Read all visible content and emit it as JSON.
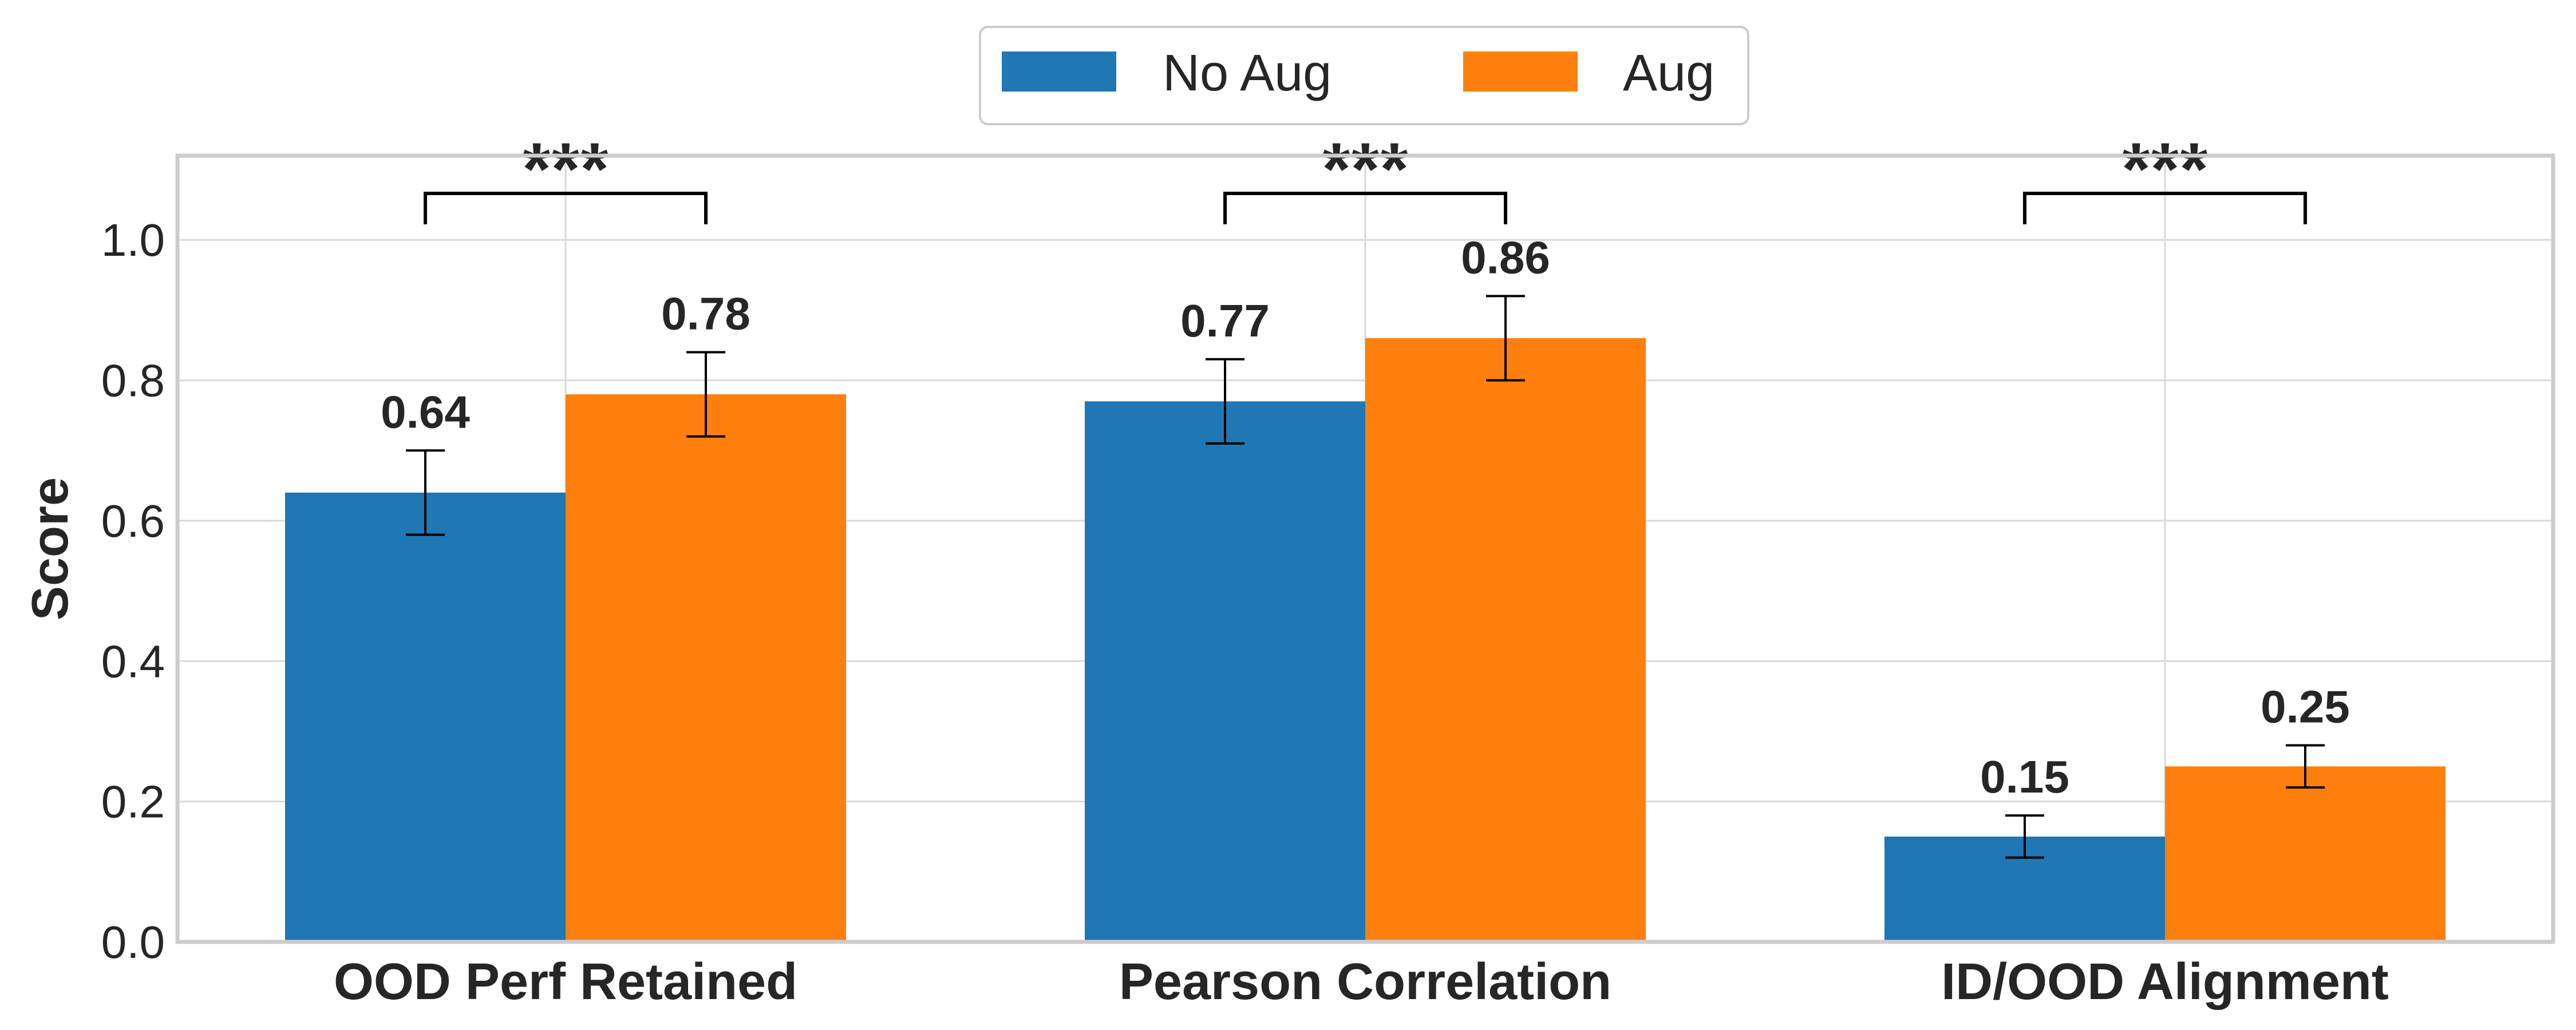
{
  "chart_data": {
    "type": "bar",
    "categories": [
      "OOD Perf Retained",
      "Pearson Correlation",
      "ID/OOD Alignment"
    ],
    "series": [
      {
        "name": "No Aug",
        "color": "#1f77b4",
        "values": [
          0.64,
          0.77,
          0.15
        ],
        "value_labels": [
          "0.64",
          "0.77",
          "0.15"
        ],
        "error_low": [
          0.58,
          0.71,
          0.12
        ],
        "error_high": [
          0.7,
          0.83,
          0.18
        ]
      },
      {
        "name": "Aug",
        "color": "#ff7f0e",
        "values": [
          0.78,
          0.86,
          0.25
        ],
        "value_labels": [
          "0.78",
          "0.86",
          "0.25"
        ],
        "error_low": [
          0.72,
          0.8,
          0.22
        ],
        "error_high": [
          0.84,
          0.92,
          0.28
        ]
      }
    ],
    "significance": [
      "***",
      "***",
      "***"
    ],
    "title": "",
    "xlabel": "",
    "ylabel": "Score",
    "ylim": [
      0,
      1.12
    ],
    "yticks": [
      0.0,
      0.2,
      0.4,
      0.6,
      0.8,
      1.0
    ],
    "ytick_labels": [
      "0.0",
      "0.2",
      "0.4",
      "0.6",
      "0.8",
      "1.0"
    ],
    "grid": true,
    "legend_position": "top-center"
  }
}
